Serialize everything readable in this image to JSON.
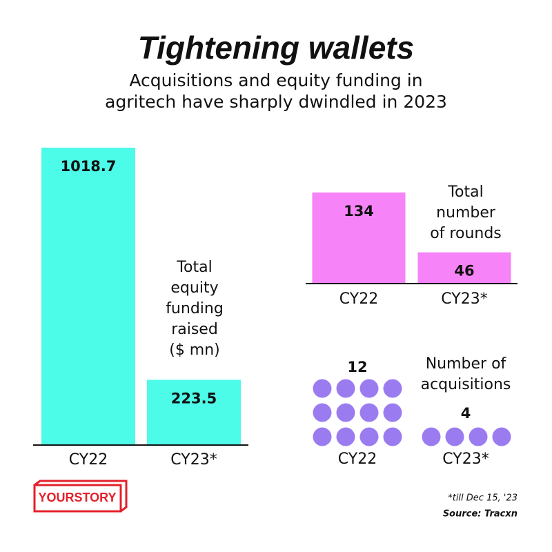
{
  "title": "Tightening wallets",
  "subtitle": [
    "Acquisitions and equity funding in",
    "agritech have sharply dwindled in 2023"
  ],
  "chart_data": [
    {
      "type": "bar",
      "label": [
        "Total",
        "equity",
        "funding",
        "raised",
        "($ mn)"
      ],
      "categories": [
        "CY22",
        "CY23*"
      ],
      "values": [
        1018.7,
        223.5
      ],
      "color": "#4cfbe8"
    },
    {
      "type": "bar",
      "label": [
        "Total",
        "number",
        "of rounds"
      ],
      "categories": [
        "CY22",
        "CY23*"
      ],
      "values": [
        134,
        46
      ],
      "color": "#f683f7"
    },
    {
      "type": "pictogram",
      "label": [
        "Number of",
        "acquisitions"
      ],
      "categories": [
        "CY22",
        "CY23*"
      ],
      "values": [
        12,
        4
      ],
      "color": "#9b7cf0"
    }
  ],
  "logo": "YOURSTORY",
  "footnote": "*till Dec 15, '23",
  "source": "Source: Tracxn"
}
